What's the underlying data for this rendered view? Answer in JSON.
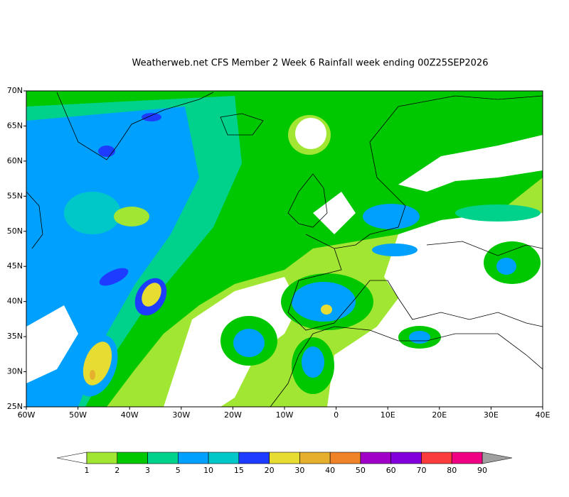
{
  "title": "Weatherweb.net CFS Member 2 Week 6 Rainfall week ending 00Z25SEP2026",
  "map": {
    "lat_labels": [
      "70N",
      "65N",
      "60N",
      "55N",
      "50N",
      "45N",
      "40N",
      "35N",
      "30N",
      "25N"
    ],
    "lon_labels": [
      "60W",
      "50W",
      "40W",
      "30W",
      "20W",
      "10W",
      "0",
      "10E",
      "20E",
      "30E",
      "40E"
    ]
  },
  "legend": {
    "labels": [
      "1",
      "2",
      "3",
      "5",
      "10",
      "15",
      "20",
      "30",
      "40",
      "50",
      "60",
      "70",
      "80",
      "90"
    ],
    "colors": [
      "#a0e632",
      "#00c800",
      "#00d28c",
      "#00a0ff",
      "#00c8c8",
      "#1e3cff",
      "#e6dc32",
      "#e6af2d",
      "#f08228",
      "#a000c8",
      "#8200dc",
      "#fa3c3c",
      "#f00082"
    ],
    "under_color": "#ffffff",
    "over_color": "#a0a0a0"
  }
}
